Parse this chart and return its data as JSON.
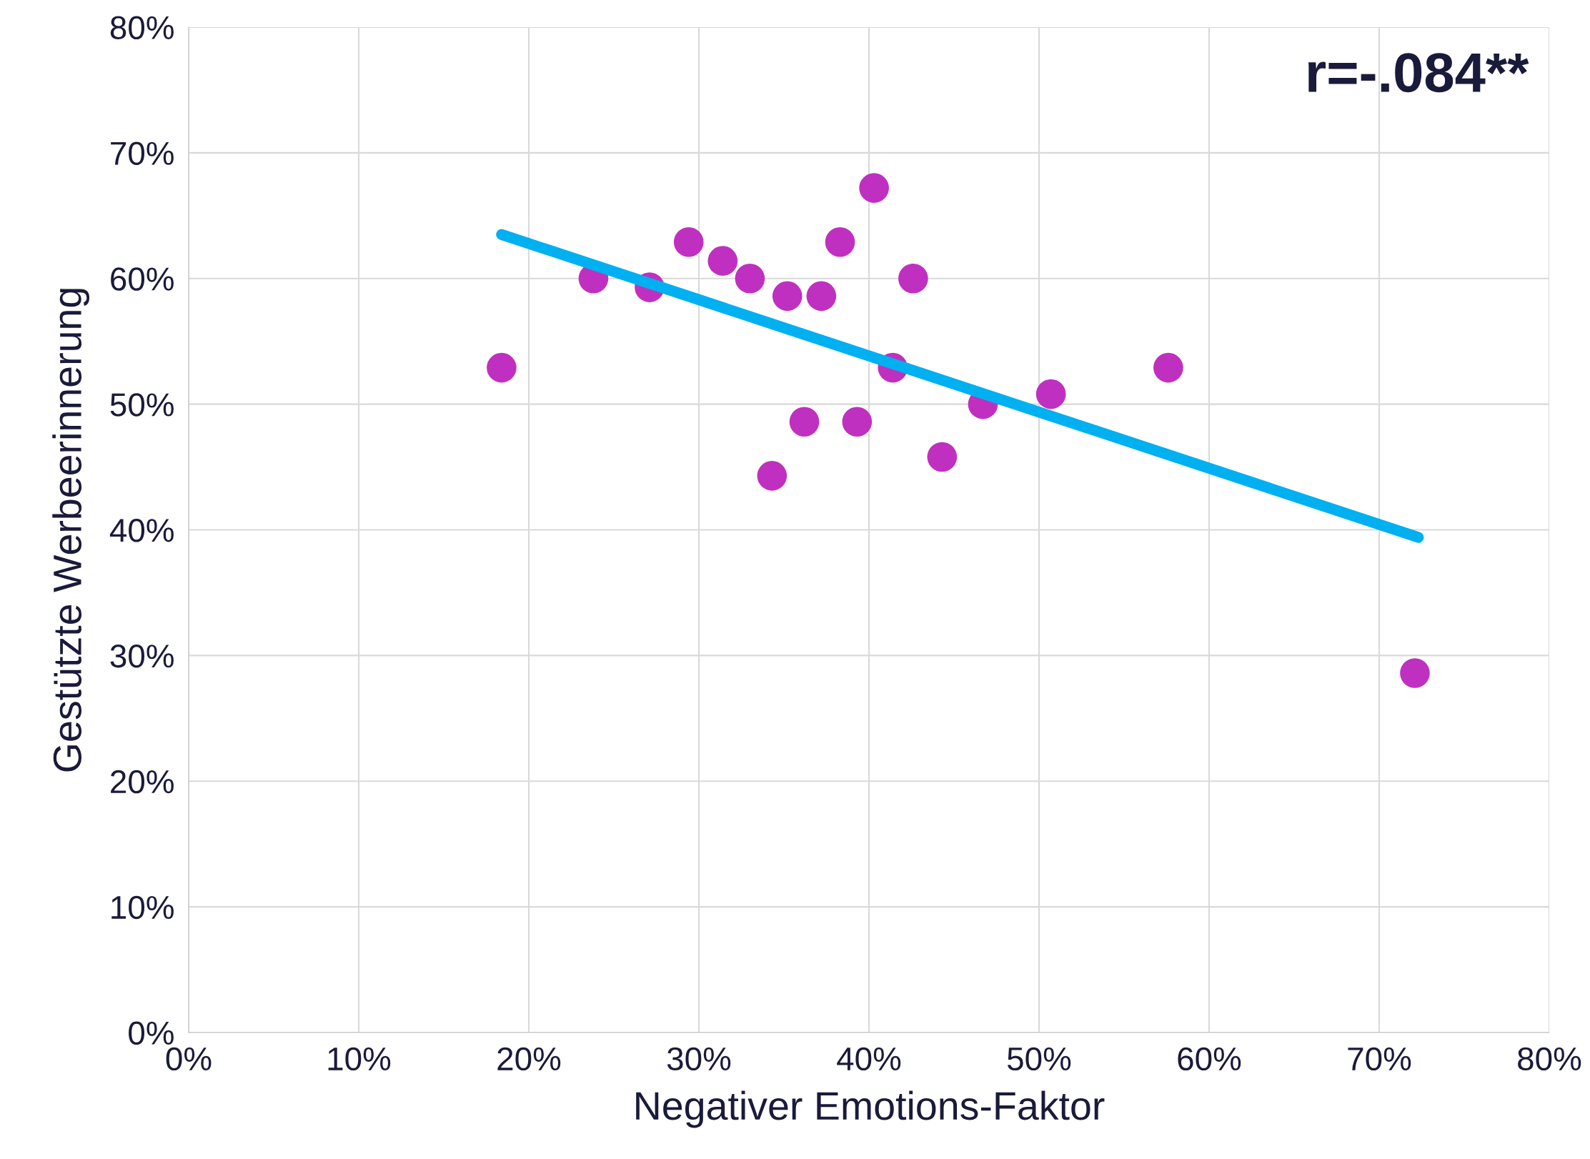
{
  "chart_data": {
    "type": "scatter",
    "xlabel": "Negativer Emotions-Faktor",
    "ylabel": "Gestützte Werbeerinnerung",
    "annotations": [
      "r=-.084**"
    ],
    "series": [
      {
        "color": "#c030c0",
        "marker": "circle",
        "x": [
          18.4,
          23.8,
          27.1,
          29.4,
          31.4,
          33.0,
          35.2,
          37.2,
          38.3,
          40.3,
          42.6,
          41.4,
          36.2,
          39.3,
          34.3,
          44.3,
          46.7,
          50.7,
          57.6,
          72.1
        ],
        "values": [
          52.9,
          60.0,
          59.3,
          62.9,
          61.4,
          60.0,
          58.6,
          58.6,
          62.9,
          67.2,
          60.0,
          52.9,
          48.6,
          48.6,
          44.3,
          45.8,
          50.0,
          50.8,
          52.9,
          28.6
        ]
      },
      {
        "type": "line",
        "color": "#00b0f0",
        "marker": "none",
        "line_style": "solid",
        "x": [
          18.4,
          72.3
        ],
        "values": [
          63.5,
          39.4
        ]
      }
    ],
    "xlim": [
      0,
      80
    ],
    "ylim": [
      0,
      80
    ],
    "xticks": [
      {
        "value": 0,
        "label": "0%"
      },
      {
        "value": 10,
        "label": "10%"
      },
      {
        "value": 20,
        "label": "20%"
      },
      {
        "value": 30,
        "label": "30%"
      },
      {
        "value": 40,
        "label": "40%"
      },
      {
        "value": 50,
        "label": "50%"
      },
      {
        "value": 60,
        "label": "60%"
      },
      {
        "value": 70,
        "label": "70%"
      },
      {
        "value": 80,
        "label": "80%"
      }
    ],
    "yticks": [
      {
        "value": 0,
        "label": "0%"
      },
      {
        "value": 10,
        "label": "10%"
      },
      {
        "value": 20,
        "label": "20%"
      },
      {
        "value": 30,
        "label": "30%"
      },
      {
        "value": 40,
        "label": "40%"
      },
      {
        "value": 50,
        "label": "50%"
      },
      {
        "value": 60,
        "label": "60%"
      },
      {
        "value": 70,
        "label": "70%"
      },
      {
        "value": 80,
        "label": "80%"
      }
    ],
    "grid": true
  }
}
